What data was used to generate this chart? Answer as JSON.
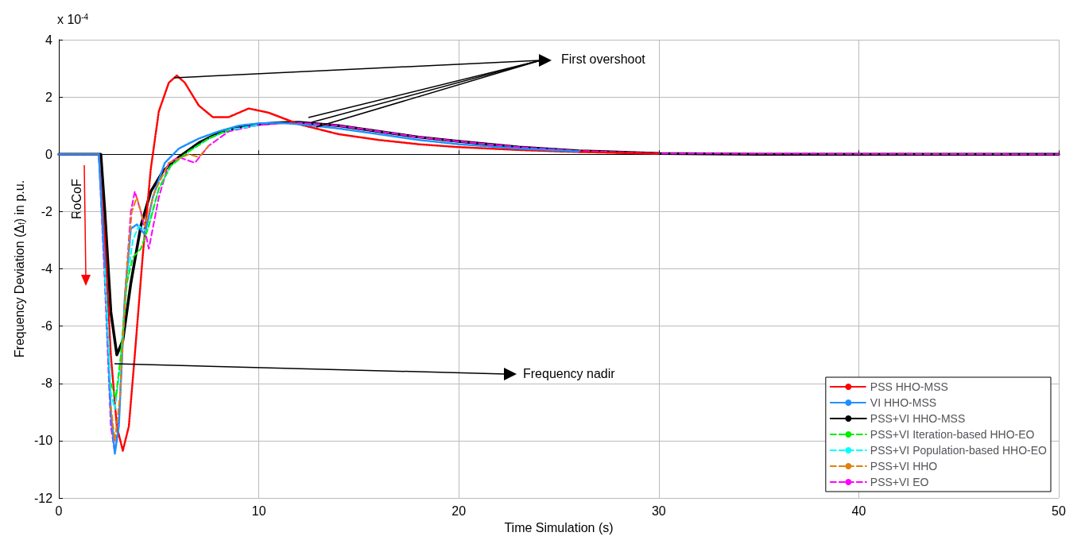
{
  "chart_data": {
    "type": "line",
    "xlabel": "Time Simulation (s)",
    "ylabel": "Frequency Deviation (Δ$_{f}$) in p.u.",
    "annotations": [
      "x 10$^{-4}$",
      "First overshoot",
      "Frequency nadir",
      "RoCoF"
    ],
    "xlim": [
      0,
      50
    ],
    "xticks": [
      0,
      10,
      20,
      30,
      40,
      50
    ],
    "ylim": [
      -12,
      4
    ],
    "yticks": [
      -12,
      -10,
      -8,
      -6,
      -4,
      -2,
      0,
      2,
      4
    ],
    "grid": true,
    "legend": "bottom right",
    "marker": "none",
    "series": [
      {
        "name": "PSS HHO-MSS",
        "color": "#ff0000",
        "line_style": "dotted",
        "x": [
          0,
          2,
          2.3,
          2.6,
          2.9,
          3.2,
          3.5,
          3.8,
          4.2,
          4.6,
          5,
          5.5,
          5.9,
          6.3,
          7,
          7.7,
          8.5,
          9.5,
          10.5,
          12,
          14,
          16,
          18,
          20,
          23,
          26,
          30
        ],
        "values": [
          0,
          0,
          -3,
          -7,
          -9.5,
          -10.35,
          -9.5,
          -7,
          -3.5,
          -0.5,
          1.5,
          2.5,
          2.75,
          2.5,
          1.7,
          1.3,
          1.3,
          1.6,
          1.45,
          1.05,
          0.7,
          0.5,
          0.35,
          0.25,
          0.15,
          0.08,
          0.02
        ]
      },
      {
        "name": "VI HHO-MSS",
        "color": "#1e90ff",
        "line_style": "dotted",
        "x": [
          0,
          2,
          2.3,
          2.6,
          2.8,
          3,
          3.3,
          3.6,
          3.9,
          4.3,
          4.7,
          5.3,
          6,
          7,
          8,
          9,
          10,
          11,
          12,
          14,
          16,
          18,
          20,
          23,
          26
        ],
        "values": [
          0,
          0,
          -4,
          -9,
          -10.45,
          -9.5,
          -5,
          -2.6,
          -2.45,
          -2.8,
          -1.5,
          -0.3,
          0.2,
          0.55,
          0.8,
          1,
          1.08,
          1.1,
          1.05,
          0.9,
          0.7,
          0.5,
          0.35,
          0.2,
          0.1
        ]
      },
      {
        "name": "PSS+VI HHO-MSS",
        "color": "#000000",
        "line_style": "solid",
        "x": [
          0,
          2.1,
          2.3,
          2.6,
          2.9,
          3.2,
          3.6,
          4.1,
          4.6,
          5.2,
          6,
          7,
          8,
          9,
          10,
          11,
          12,
          14,
          16,
          18,
          20,
          23,
          26,
          30,
          35,
          50
        ],
        "values": [
          0,
          0,
          -2,
          -5.5,
          -7,
          -6.5,
          -4.5,
          -2.5,
          -1.3,
          -0.6,
          -0.1,
          0.4,
          0.75,
          0.95,
          1.05,
          1.1,
          1.12,
          1,
          0.8,
          0.6,
          0.45,
          0.25,
          0.12,
          0.03,
          0,
          0
        ]
      },
      {
        "name": "PSS+VI Iteration-based HHO-EO",
        "color": "#00ee00",
        "line_style": "dashed",
        "x": [
          2.6,
          2.85,
          3.1,
          3.4,
          3.7,
          4.1,
          4.5,
          5,
          5.6,
          6.5,
          7.5,
          8.5
        ],
        "values": [
          -8,
          -8.5,
          -7,
          -4.5,
          -3.6,
          -3.3,
          -2.5,
          -1.2,
          -0.4,
          0.1,
          0.55,
          0.85
        ]
      },
      {
        "name": "PSS+VI Population-based HHO-EO",
        "color": "#00ffff",
        "line_style": "dashed",
        "x": [
          2.3,
          2.6,
          2.8,
          3.05,
          3.4,
          3.7,
          4,
          4.4,
          5,
          5.6,
          6.5,
          7.5,
          8.5,
          10
        ],
        "values": [
          -4,
          -8.3,
          -8.9,
          -7.5,
          -4.5,
          -3,
          -2.5,
          -2.7,
          -1.2,
          -0.4,
          0.1,
          0.55,
          0.85,
          1.02
        ]
      },
      {
        "name": "PSS+VI HHO",
        "color": "#e08010",
        "line_style": "dashed",
        "x": [
          2.6,
          2.8,
          3.05,
          3.4,
          3.65,
          3.9,
          4.3,
          4.8,
          5.5,
          6.5,
          7,
          7.5
        ],
        "values": [
          -8.8,
          -10,
          -8.5,
          -4,
          -2,
          -1.5,
          -2.5,
          -1.3,
          -0.3,
          0,
          -0.1,
          0.3
        ]
      },
      {
        "name": "PSS+VI EO",
        "color": "#ff00ff",
        "line_style": "dashed",
        "x": [
          0,
          2,
          2.3,
          2.6,
          2.8,
          3,
          3.3,
          3.6,
          3.8,
          4.1,
          4.5,
          5,
          5.5,
          6,
          6.8,
          7.5,
          8.5,
          10,
          11,
          12,
          14,
          16,
          18,
          20,
          23,
          26,
          30,
          50
        ],
        "values": [
          0,
          0,
          -4.5,
          -9.5,
          -10.4,
          -9.3,
          -5,
          -2,
          -1.3,
          -2,
          -3.3,
          -1.5,
          -0.3,
          -0.1,
          -0.3,
          0.3,
          0.8,
          1.02,
          1.08,
          1.1,
          1,
          0.8,
          0.6,
          0.45,
          0.25,
          0.12,
          0.03,
          0
        ]
      }
    ]
  }
}
